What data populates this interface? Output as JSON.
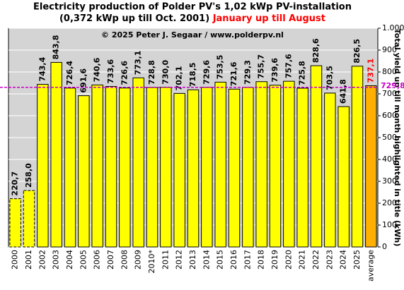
{
  "chart_data": {
    "type": "bar",
    "title": "Electricity production  of Polder PV's 1,02 kWp PV-installation",
    "subtitle": "(0,372 kWp up till Oct. 2001)",
    "subtitle_highlight": "January up till August",
    "annotation": "© 2025 Peter J. Segaar / www.polderpv.nl",
    "y_label": "Total yield up till month highlighted in title (kWh)",
    "categories": [
      "2000",
      "2001",
      "2002",
      "2003",
      "2004",
      "2005",
      "2006",
      "2007",
      "2008",
      "2009",
      "2010*",
      "2011",
      "2012",
      "2013",
      "2014",
      "2015",
      "2016",
      "2017",
      "2018",
      "2019",
      "2020",
      "2021",
      "2022",
      "2023",
      "2024",
      "2025",
      "average"
    ],
    "values": [
      220.7,
      258.0,
      743.4,
      843.8,
      726.4,
      691.6,
      740.6,
      733.6,
      726.6,
      773.1,
      728.8,
      730.0,
      702.1,
      718.5,
      729.6,
      753.5,
      721.6,
      729.3,
      755.7,
      739.6,
      757.6,
      725.8,
      828.6,
      703.5,
      641.8,
      826.5,
      737.1
    ],
    "value_labels": [
      "220,7",
      "258,0",
      "743,4",
      "843,8",
      "726,4",
      "691,6",
      "740,6",
      "733,6",
      "726,6",
      "773,1",
      "728,8",
      "730,0",
      "702,1",
      "718,5",
      "729,6",
      "753,5",
      "721,6",
      "729,3",
      "755,7",
      "739,6",
      "757,6",
      "725,8",
      "828,6",
      "703,5",
      "641,8",
      "826,5",
      "737,1"
    ],
    "color": "#ffff00",
    "average_color": "#ffb000",
    "reference_line": {
      "value": 729.8,
      "label": "729,8",
      "color": "#cc00cc"
    },
    "ylim": [
      0,
      1000
    ],
    "yticks": [
      0,
      100,
      200,
      300,
      400,
      500,
      600,
      700,
      800,
      900,
      {
        "value": 1000,
        "label": "1.000"
      }
    ],
    "grid": true
  }
}
